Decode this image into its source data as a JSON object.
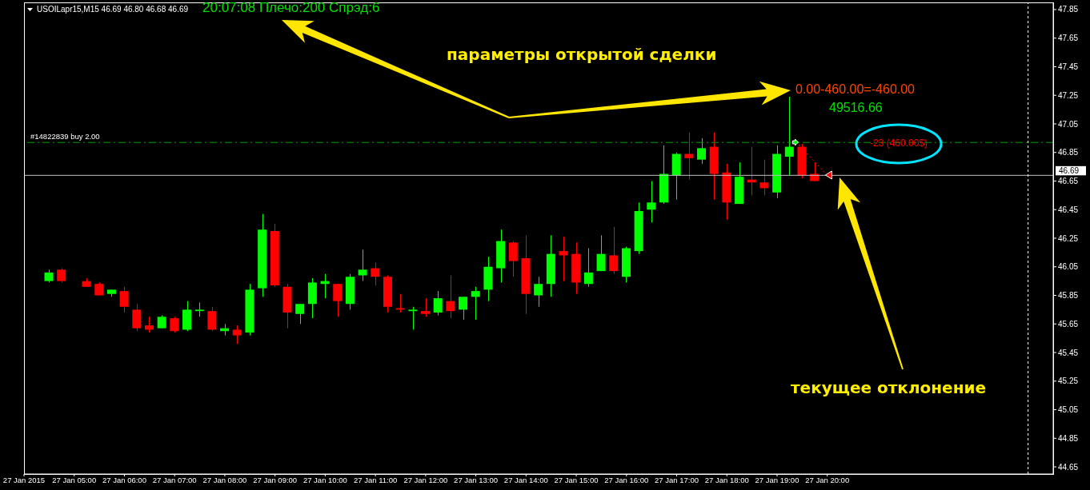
{
  "chart_data": {
    "type": "candlestick",
    "title": "USOILapr15,M15 46.69 46.80 46.68 46.69",
    "x": [
      "2015-01-27T04:30",
      "2015-01-27T04:45",
      "2015-01-27T05:15",
      "2015-01-27T05:30",
      "2015-01-27T05:45",
      "2015-01-27T06:00",
      "2015-01-27T06:15",
      "2015-01-27T06:30",
      "2015-01-27T06:45",
      "2015-01-27T07:00",
      "2015-01-27T07:15",
      "2015-01-27T07:30",
      "2015-01-27T07:45",
      "2015-01-27T08:00",
      "2015-01-27T08:15",
      "2015-01-27T08:30",
      "2015-01-27T08:45",
      "2015-01-27T09:00",
      "2015-01-27T09:15",
      "2015-01-27T09:30",
      "2015-01-27T09:45",
      "2015-01-27T10:00",
      "2015-01-27T10:15",
      "2015-01-27T10:30",
      "2015-01-27T10:45",
      "2015-01-27T11:00",
      "2015-01-27T11:15",
      "2015-01-27T11:30",
      "2015-01-27T11:45",
      "2015-01-27T12:00",
      "2015-01-27T12:15",
      "2015-01-27T12:30",
      "2015-01-27T12:45",
      "2015-01-27T13:00",
      "2015-01-27T13:15",
      "2015-01-27T13:30",
      "2015-01-27T13:45",
      "2015-01-27T14:00",
      "2015-01-27T14:15",
      "2015-01-27T14:30",
      "2015-01-27T14:45",
      "2015-01-27T15:00",
      "2015-01-27T15:15",
      "2015-01-27T15:30",
      "2015-01-27T15:45",
      "2015-01-27T16:00",
      "2015-01-27T16:15",
      "2015-01-27T16:30",
      "2015-01-27T16:45",
      "2015-01-27T17:00",
      "2015-01-27T17:15",
      "2015-01-27T17:30",
      "2015-01-27T17:45",
      "2015-01-27T18:00",
      "2015-01-27T18:15",
      "2015-01-27T18:30",
      "2015-01-27T18:45",
      "2015-01-27T19:00",
      "2015-01-27T19:15",
      "2015-01-27T19:30",
      "2015-01-27T19:45"
    ],
    "ohlc": [
      [
        45.95,
        46.03,
        45.94,
        46.01
      ],
      [
        46.03,
        46.04,
        45.94,
        45.95
      ],
      [
        45.95,
        45.97,
        45.91,
        45.91
      ],
      [
        45.93,
        45.94,
        45.85,
        45.85
      ],
      [
        45.86,
        45.89,
        45.84,
        45.89
      ],
      [
        45.88,
        45.91,
        45.73,
        45.77
      ],
      [
        45.75,
        45.79,
        45.6,
        45.62
      ],
      [
        45.64,
        45.7,
        45.59,
        45.61
      ],
      [
        45.62,
        45.71,
        45.62,
        45.7
      ],
      [
        45.69,
        45.7,
        45.59,
        45.6
      ],
      [
        45.61,
        45.81,
        45.6,
        45.75
      ],
      [
        45.74,
        45.8,
        45.7,
        45.75
      ],
      [
        45.74,
        45.77,
        45.6,
        45.61
      ],
      [
        45.6,
        45.65,
        45.57,
        45.62
      ],
      [
        45.61,
        45.64,
        45.51,
        45.57
      ],
      [
        45.59,
        45.93,
        45.57,
        45.89
      ],
      [
        45.9,
        46.42,
        45.84,
        46.31
      ],
      [
        46.3,
        46.35,
        45.91,
        45.92
      ],
      [
        45.91,
        45.93,
        45.62,
        45.73
      ],
      [
        45.72,
        45.79,
        45.65,
        45.79
      ],
      [
        45.79,
        45.97,
        45.69,
        45.94
      ],
      [
        45.93,
        46.0,
        45.83,
        45.95
      ],
      [
        45.93,
        45.93,
        45.7,
        45.81
      ],
      [
        45.79,
        46.0,
        45.75,
        45.98
      ],
      [
        45.99,
        46.17,
        45.95,
        46.03
      ],
      [
        46.04,
        46.08,
        45.92,
        45.98
      ],
      [
        45.98,
        45.99,
        45.73,
        45.77
      ],
      [
        45.76,
        45.86,
        45.73,
        45.75
      ],
      [
        45.74,
        45.77,
        45.61,
        45.75
      ],
      [
        45.74,
        45.83,
        45.7,
        45.72
      ],
      [
        45.73,
        45.88,
        45.71,
        45.83
      ],
      [
        45.81,
        45.99,
        45.69,
        45.74
      ],
      [
        45.75,
        45.84,
        45.68,
        45.84
      ],
      [
        45.84,
        45.91,
        45.68,
        45.88
      ],
      [
        45.89,
        46.12,
        45.81,
        46.05
      ],
      [
        46.04,
        46.31,
        45.94,
        46.23
      ],
      [
        46.22,
        46.23,
        45.98,
        46.09
      ],
      [
        46.11,
        46.27,
        45.72,
        45.86
      ],
      [
        45.85,
        45.98,
        45.77,
        45.93
      ],
      [
        45.93,
        46.27,
        45.84,
        46.14
      ],
      [
        46.16,
        46.26,
        45.95,
        46.13
      ],
      [
        46.14,
        46.22,
        45.86,
        45.94
      ],
      [
        45.93,
        46.18,
        45.91,
        46.01
      ],
      [
        46.02,
        46.27,
        46.02,
        46.14
      ],
      [
        46.13,
        46.33,
        46.0,
        46.02
      ],
      [
        45.98,
        46.19,
        45.94,
        46.18
      ],
      [
        46.16,
        46.5,
        46.14,
        46.44
      ],
      [
        46.45,
        46.65,
        46.36,
        46.5
      ],
      [
        46.5,
        46.9,
        46.49,
        46.7
      ],
      [
        46.69,
        46.85,
        46.52,
        46.84
      ],
      [
        46.84,
        46.99,
        46.66,
        46.81
      ],
      [
        46.8,
        46.95,
        46.77,
        46.88
      ],
      [
        46.89,
        46.99,
        46.52,
        46.7
      ],
      [
        46.71,
        46.77,
        46.38,
        46.5
      ],
      [
        46.49,
        46.78,
        46.49,
        46.68
      ],
      [
        46.66,
        46.89,
        46.55,
        46.64
      ],
      [
        46.64,
        46.8,
        46.55,
        46.6
      ],
      [
        46.57,
        46.9,
        46.53,
        46.84
      ],
      [
        46.82,
        47.24,
        46.69,
        46.89
      ],
      [
        46.89,
        46.91,
        46.67,
        46.69
      ],
      [
        46.7,
        46.78,
        46.65,
        46.65
      ]
    ],
    "colors": [
      "#00ff00",
      "#ff0000",
      "#ff0000",
      "#ff0000",
      "#00ff00",
      "#ff0000",
      "#ff0000",
      "#ff0000",
      "#00ff00",
      "#ff0000",
      "#00ff00",
      "#00ff00",
      "#ff0000",
      "#00ff00",
      "#ff0000",
      "#00ff00",
      "#00ff00",
      "#ff0000",
      "#ff0000",
      "#00ff00",
      "#00ff00",
      "#00ff00",
      "#ff0000",
      "#00ff00",
      "#00ff00",
      "#ff0000",
      "#ff0000",
      "#ff0000",
      "#00ff00",
      "#ff0000",
      "#00ff00",
      "#ff0000",
      "#00ff00",
      "#00ff00",
      "#00ff00",
      "#00ff00",
      "#ff0000",
      "#ff0000",
      "#00ff00",
      "#00ff00",
      "#ff0000",
      "#ff0000",
      "#00ff00",
      "#00ff00",
      "#ff0000",
      "#00ff00",
      "#00ff00",
      "#00ff00",
      "#00ff00",
      "#00ff00",
      "#ff0000",
      "#00ff00",
      "#ff0000",
      "#ff0000",
      "#00ff00",
      "#ff0000",
      "#ff0000",
      "#00ff00",
      "#00ff00",
      "#ff0000",
      "#ff0000"
    ],
    "xlim": [
      "2015-01-27T04:00",
      "2015-01-28T00:30"
    ],
    "xticks": [
      {
        "value": "2015-01-27T04:00",
        "label": "27 Jan 2015"
      },
      {
        "value": "2015-01-27T05:00",
        "label": "27 Jan 05:00"
      },
      {
        "value": "2015-01-27T06:00",
        "label": "27 Jan 06:00"
      },
      {
        "value": "2015-01-27T07:00",
        "label": "27 Jan 07:00"
      },
      {
        "value": "2015-01-27T08:00",
        "label": "27 Jan 08:00"
      },
      {
        "value": "2015-01-27T09:00",
        "label": "27 Jan 09:00"
      },
      {
        "value": "2015-01-27T10:00",
        "label": "27 Jan 10:00"
      },
      {
        "value": "2015-01-27T11:00",
        "label": "27 Jan 11:00"
      },
      {
        "value": "2015-01-27T12:00",
        "label": "27 Jan 12:00"
      },
      {
        "value": "2015-01-27T13:00",
        "label": "27 Jan 13:00"
      },
      {
        "value": "2015-01-27T14:00",
        "label": "27 Jan 14:00"
      },
      {
        "value": "2015-01-27T15:00",
        "label": "27 Jan 15:00"
      },
      {
        "value": "2015-01-27T16:00",
        "label": "27 Jan 16:00"
      },
      {
        "value": "2015-01-27T17:00",
        "label": "27 Jan 17:00"
      },
      {
        "value": "2015-01-27T18:00",
        "label": "27 Jan 18:00"
      },
      {
        "value": "2015-01-27T19:00",
        "label": "27 Jan 19:00"
      },
      {
        "value": "2015-01-27T20:00",
        "label": "27 Jan 20:00"
      }
    ],
    "ylim": [
      44.6,
      47.9
    ],
    "yticks": [
      44.65,
      44.85,
      45.05,
      45.25,
      45.45,
      45.65,
      45.85,
      46.05,
      46.25,
      46.45,
      46.65,
      46.85,
      47.05,
      47.25,
      47.45,
      47.65,
      47.85
    ],
    "ref_lines": [
      {
        "axis": "y",
        "value": 46.92,
        "label": "#14822839 buy 2.00",
        "color": "#00a000",
        "line_style": "dashed"
      },
      {
        "axis": "y",
        "value": 46.69,
        "label": "46.69",
        "color": "#c0c0c0",
        "line_style": "solid"
      },
      {
        "axis": "x",
        "value": "2015-01-28T00:00",
        "color": "#ffffff",
        "line_style": "dashed"
      }
    ],
    "annotations": [
      "20:07:08 Плечо:200 Спрэд:6",
      "параметры открытой сделки",
      "0.00-460.00=-460.00",
      "49516.66",
      "-23 (460.00$)",
      "текущее отклонение"
    ]
  }
}
